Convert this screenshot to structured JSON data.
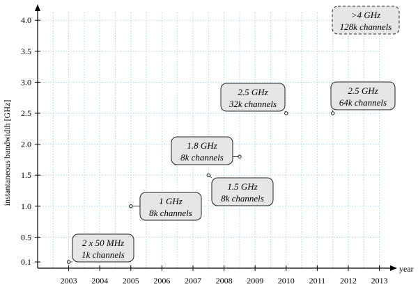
{
  "chart_data": {
    "type": "scatter",
    "xlabel": "year",
    "ylabel": "instantaneous bandwidth [GHz]",
    "xlim": [
      2002,
      2013
    ],
    "ylim": [
      0,
      4.1
    ],
    "x_ticks": [
      2003,
      2004,
      2005,
      2006,
      2007,
      2008,
      2009,
      2010,
      2011,
      2012,
      2013
    ],
    "x_tick_labels": [
      "2003",
      "2004",
      "2005",
      "2006",
      "2007",
      "2008",
      "2009",
      "2010",
      "2011",
      "2012",
      "2013"
    ],
    "y_ticks": [
      0.1,
      0.5,
      1.0,
      1.5,
      2.0,
      2.5,
      3.0,
      3.5,
      4.0
    ],
    "y_tick_labels": [
      "0.1",
      "0.5",
      "1.0",
      "1.5",
      "2.0",
      "2.5",
      "3.0",
      "3.5",
      "4.0"
    ],
    "grid": true,
    "points": [
      {
        "x": 2003.0,
        "y": 0.1,
        "line1": "2 x 50 MHz",
        "line2": "1k channels"
      },
      {
        "x": 2005.0,
        "y": 1.0,
        "line1": "1 GHz",
        "line2": "8k channels"
      },
      {
        "x": 2007.5,
        "y": 1.5,
        "line1": "1.5 GHz",
        "line2": "8k channels"
      },
      {
        "x": 2008.5,
        "y": 1.8,
        "line1": "1.8 GHz",
        "line2": "8k channels"
      },
      {
        "x": 2010.0,
        "y": 2.5,
        "line1": "2.5 GHz",
        "line2": "32k channels"
      },
      {
        "x": 2011.5,
        "y": 2.5,
        "line1": "2.5 GHz",
        "line2": "64k channels"
      }
    ],
    "projected_note": {
      "line1": ">4 GHz",
      "line2": "128k channels"
    }
  }
}
